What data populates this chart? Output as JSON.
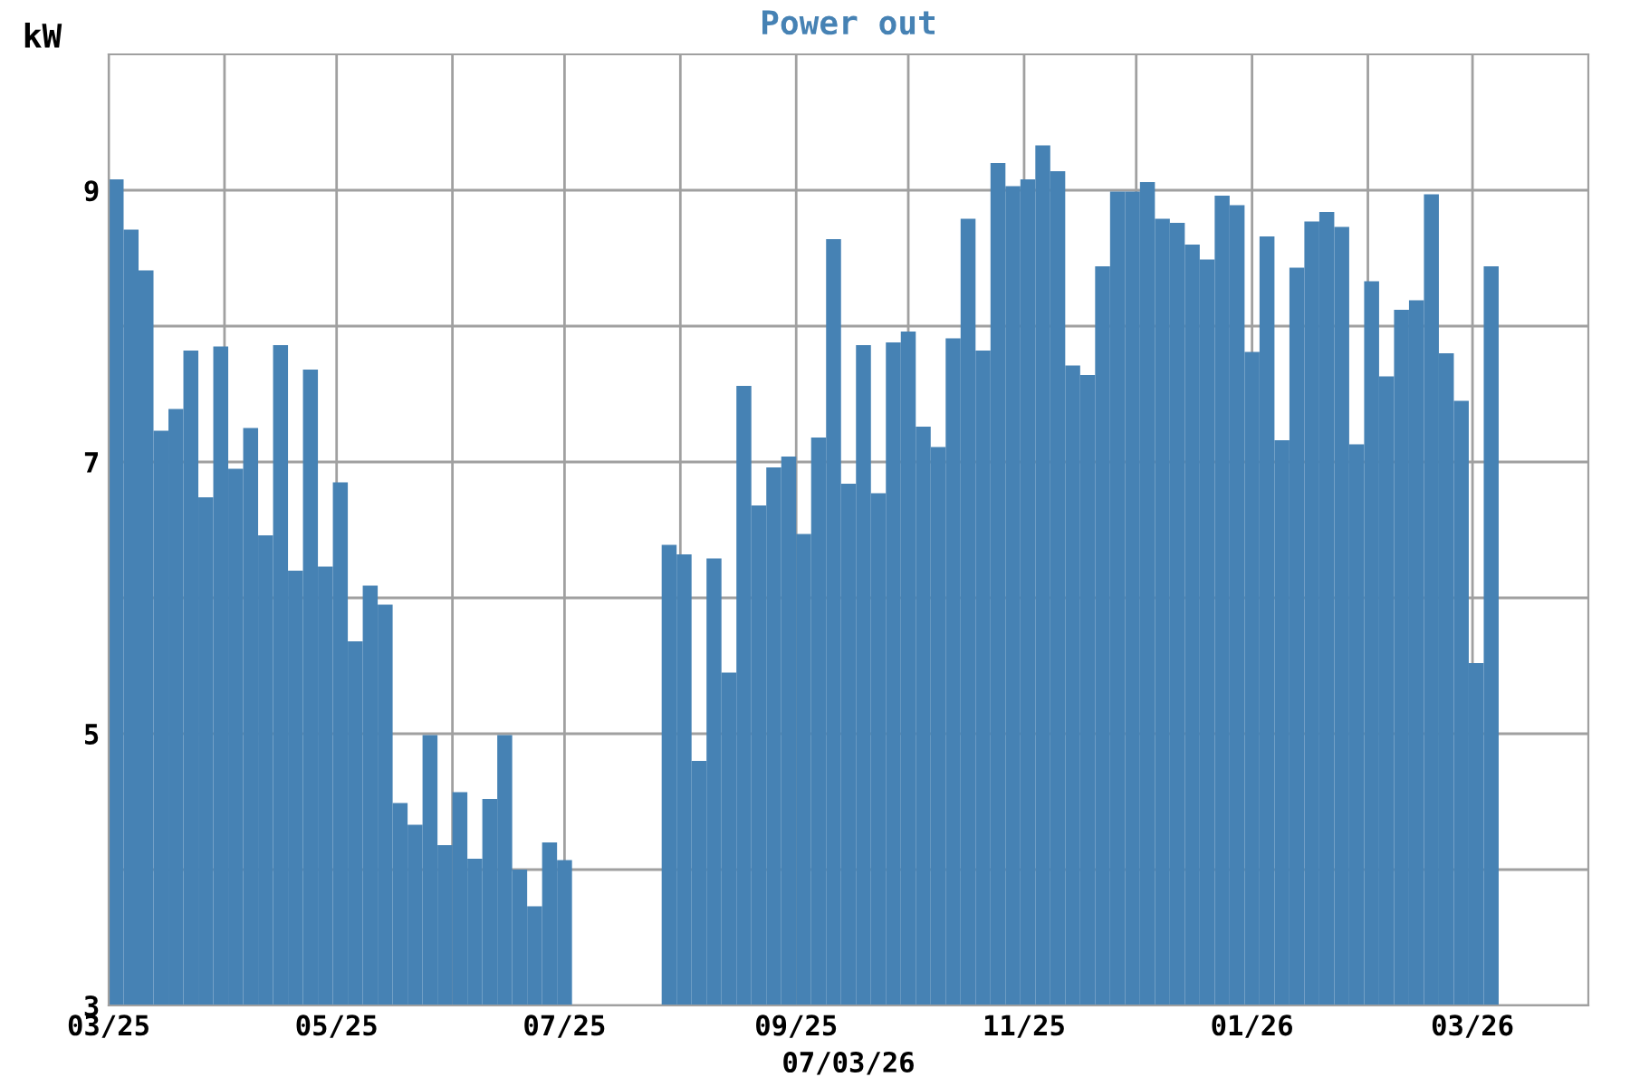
{
  "chart_data": {
    "type": "bar",
    "title": "Power out",
    "ylabel": "kW",
    "xlabel": "07/03/26",
    "x": [
      "2025-03-01",
      "2025-03-05",
      "2025-03-09",
      "2025-03-13",
      "2025-03-17",
      "2025-03-21",
      "2025-03-25",
      "2025-03-29",
      "2025-04-02",
      "2025-04-06",
      "2025-04-10",
      "2025-04-14",
      "2025-04-18",
      "2025-04-22",
      "2025-04-26",
      "2025-04-30",
      "2025-05-04",
      "2025-05-08",
      "2025-05-12",
      "2025-05-16",
      "2025-05-20",
      "2025-05-24",
      "2025-05-28",
      "2025-06-01",
      "2025-06-05",
      "2025-06-09",
      "2025-06-13",
      "2025-06-17",
      "2025-06-21",
      "2025-06-25",
      "2025-06-29",
      "2025-07-03",
      "2025-07-07",
      "2025-07-11",
      "2025-07-15",
      "2025-07-19",
      "2025-07-23",
      "2025-07-27",
      "2025-07-31",
      "2025-08-04",
      "2025-08-08",
      "2025-08-12",
      "2025-08-16",
      "2025-08-20",
      "2025-08-24",
      "2025-08-28",
      "2025-09-01",
      "2025-09-05",
      "2025-09-09",
      "2025-09-13",
      "2025-09-17",
      "2025-09-21",
      "2025-09-25",
      "2025-09-29",
      "2025-10-03",
      "2025-10-07",
      "2025-10-11",
      "2025-10-15",
      "2025-10-19",
      "2025-10-23",
      "2025-10-27",
      "2025-10-31",
      "2025-11-04",
      "2025-11-08",
      "2025-11-12",
      "2025-11-16",
      "2025-11-20",
      "2025-11-24",
      "2025-11-28",
      "2025-12-02",
      "2025-12-06",
      "2025-12-10",
      "2025-12-14",
      "2025-12-18",
      "2025-12-22",
      "2025-12-26",
      "2025-12-30",
      "2026-01-03",
      "2026-01-07",
      "2026-01-11",
      "2026-01-15",
      "2026-01-19",
      "2026-01-23",
      "2026-01-27",
      "2026-01-31",
      "2026-02-04",
      "2026-02-08",
      "2026-02-12",
      "2026-02-16",
      "2026-02-20",
      "2026-02-24",
      "2026-02-28",
      "2026-03-04"
    ],
    "series": [
      {
        "color": "#4682b4",
        "values": [
          9.08,
          8.71,
          8.41,
          7.23,
          7.39,
          7.82,
          6.74,
          7.85,
          6.95,
          7.25,
          6.46,
          7.86,
          6.2,
          7.68,
          6.23,
          6.85,
          5.68,
          6.09,
          5.95,
          4.49,
          4.33,
          4.99,
          4.18,
          4.57,
          4.08,
          4.52,
          4.99,
          4.0,
          3.73,
          4.2,
          4.07,
          null,
          null,
          null,
          null,
          null,
          null,
          6.39,
          6.32,
          4.8,
          6.29,
          5.45,
          7.56,
          6.68,
          6.96,
          7.04,
          6.47,
          7.18,
          8.64,
          6.84,
          7.86,
          6.77,
          7.88,
          7.96,
          7.26,
          7.11,
          7.91,
          8.79,
          7.82,
          9.2,
          9.03,
          9.08,
          9.33,
          9.14,
          7.71,
          7.64,
          8.44,
          8.99,
          8.99,
          9.06,
          8.79,
          8.76,
          8.6,
          8.49,
          8.96,
          8.89,
          7.81,
          8.66,
          7.16,
          8.43,
          8.77,
          8.84,
          8.73,
          7.13,
          8.33,
          7.63,
          8.12,
          8.19,
          8.97,
          7.8,
          7.45,
          5.52,
          8.44
        ]
      }
    ],
    "xlim": [
      "2025-03-01",
      "2026-04-01"
    ],
    "xticks": [
      {
        "value": "2025-03-01",
        "label": "03/25"
      },
      {
        "value": "2025-04-01",
        "label": null
      },
      {
        "value": "2025-05-01",
        "label": "05/25"
      },
      {
        "value": "2025-06-01",
        "label": null
      },
      {
        "value": "2025-07-01",
        "label": "07/25"
      },
      {
        "value": "2025-08-01",
        "label": null
      },
      {
        "value": "2025-09-01",
        "label": "09/25"
      },
      {
        "value": "2025-10-01",
        "label": null
      },
      {
        "value": "2025-11-01",
        "label": "11/25"
      },
      {
        "value": "2025-12-01",
        "label": null
      },
      {
        "value": "2026-01-01",
        "label": "01/26"
      },
      {
        "value": "2026-02-01",
        "label": null
      },
      {
        "value": "2026-03-01",
        "label": "03/26"
      }
    ],
    "ylim": [
      3,
      10
    ],
    "yticks": [
      3,
      {
        "value": 4,
        "label": null
      },
      5,
      {
        "value": 6,
        "label": null
      },
      7,
      {
        "value": 8,
        "label": null
      },
      9
    ],
    "grid": true
  }
}
